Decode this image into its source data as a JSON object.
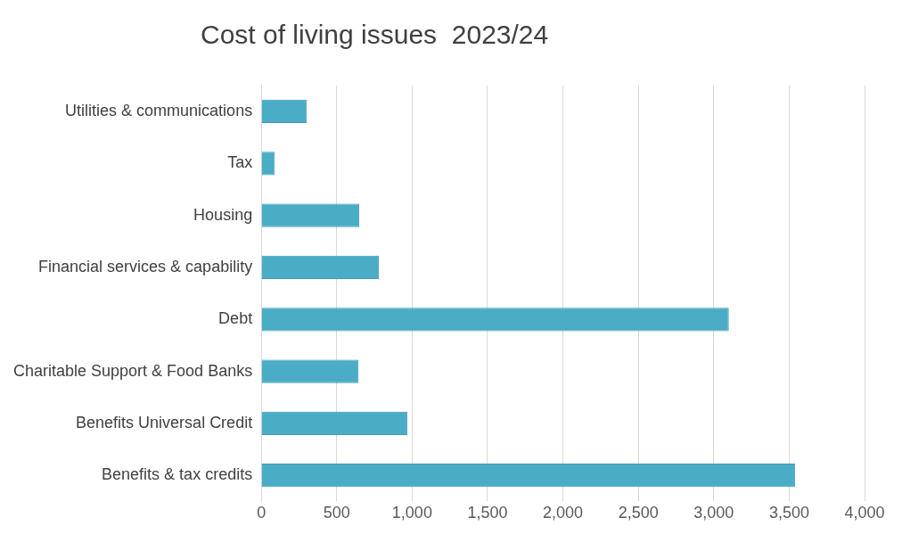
{
  "chart_data": {
    "type": "bar",
    "orientation": "horizontal",
    "title": "Cost of living issues  2023/24",
    "categories": [
      "Utilities & communications",
      "Tax",
      "Housing",
      "Financial services & capability",
      "Debt",
      "Charitable Support & Food Banks",
      "Benefits Universal Credit",
      "Benefits & tax credits"
    ],
    "values": [
      300,
      90,
      650,
      780,
      3100,
      645,
      970,
      3540
    ],
    "color": "#4bacc6",
    "xlim": [
      0,
      4000
    ],
    "xticks": [
      0,
      500,
      {
        "value": 1000,
        "label": "1,000"
      },
      {
        "value": 1500,
        "label": "1,500"
      },
      {
        "value": 2000,
        "label": "2,000"
      },
      {
        "value": 2500,
        "label": "2,500"
      },
      {
        "value": 3000,
        "label": "3,000"
      },
      {
        "value": 3500,
        "label": "3,500"
      },
      {
        "value": 4000,
        "label": "4,000"
      }
    ],
    "grid": "x",
    "legend": false
  }
}
